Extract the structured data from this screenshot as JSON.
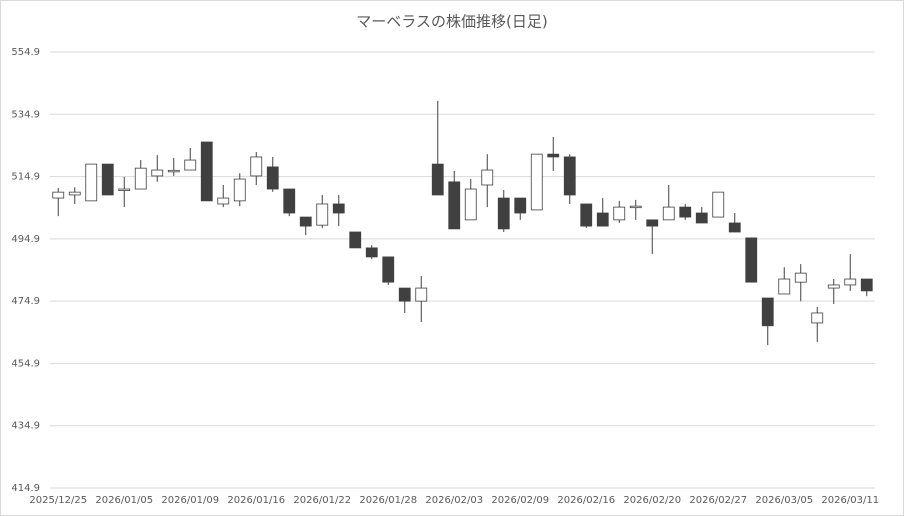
{
  "chart_data": {
    "type": "candlestick",
    "title": "マーベラスの株価推移(日足)",
    "categories": [
      "2025/12/25",
      null,
      null,
      null,
      "2026/01/05",
      null,
      null,
      null,
      "2026/01/09",
      null,
      null,
      null,
      "2026/01/16",
      null,
      null,
      null,
      "2026/01/22",
      null,
      null,
      null,
      "2026/01/28",
      null,
      null,
      null,
      "2026/02/03",
      null,
      null,
      null,
      "2026/02/09",
      null,
      null,
      null,
      "2026/02/16",
      null,
      null,
      null,
      "2026/02/20",
      null,
      null,
      null,
      "2026/02/27",
      null,
      null,
      null,
      "2026/03/05",
      null,
      null,
      null,
      "2026/03/11",
      null
    ],
    "open": [
      508.0,
      509.0,
      507.1,
      518.9,
      510.6,
      510.9,
      515.1,
      516.7,
      517.0,
      526.0,
      506.1,
      507.1,
      515.1,
      518.0,
      510.9,
      501.9,
      499.3,
      506.1,
      497.1,
      492.0,
      489.1,
      479.1,
      474.9,
      518.9,
      513.2,
      501.0,
      512.2,
      508.0,
      508.0,
      504.2,
      522.1,
      521.2,
      506.1,
      503.2,
      501.0,
      505.1,
      501.0,
      501.0,
      505.1,
      503.2,
      501.9,
      500.0,
      495.2,
      475.9,
      477.2,
      481.0,
      467.9,
      479.1,
      480.1,
      482.0
    ],
    "high": [
      511.2,
      511.5,
      518.9,
      518.9,
      514.8,
      520.2,
      521.8,
      520.9,
      524.1,
      526.0,
      512.2,
      516.0,
      522.8,
      521.2,
      510.9,
      501.9,
      509.0,
      509.0,
      497.1,
      492.9,
      489.1,
      479.1,
      483.0,
      539.2,
      516.7,
      514.1,
      522.1,
      510.6,
      508.0,
      522.1,
      527.6,
      522.1,
      506.1,
      508.0,
      507.1,
      507.4,
      501.0,
      512.2,
      506.1,
      505.1,
      509.9,
      503.2,
      495.2,
      475.9,
      485.8,
      486.8,
      473.0,
      482.0,
      490.0,
      482.0
    ],
    "low": [
      502.2,
      506.1,
      507.1,
      509.0,
      505.1,
      510.9,
      513.2,
      515.1,
      517.0,
      507.1,
      505.1,
      505.4,
      512.2,
      510.0,
      502.2,
      496.1,
      498.4,
      499.0,
      492.0,
      488.4,
      480.1,
      471.1,
      468.2,
      509.0,
      498.1,
      501.0,
      505.1,
      497.1,
      501.0,
      504.2,
      516.7,
      506.1,
      498.4,
      499.0,
      500.0,
      501.0,
      490.0,
      501.0,
      501.0,
      500.0,
      501.9,
      497.1,
      481.0,
      460.8,
      477.2,
      474.9,
      461.8,
      474.0,
      478.2,
      476.5
    ],
    "close": [
      509.9,
      509.9,
      518.9,
      509.0,
      510.9,
      517.6,
      517.0,
      516.9,
      520.2,
      507.1,
      508.0,
      514.1,
      521.2,
      510.9,
      503.2,
      499.0,
      506.1,
      503.2,
      492.0,
      489.1,
      481.0,
      474.9,
      479.1,
      509.0,
      498.1,
      510.9,
      517.0,
      498.1,
      503.2,
      522.1,
      521.2,
      509.0,
      499.0,
      499.0,
      505.1,
      505.4,
      499.0,
      505.1,
      501.9,
      500.0,
      509.9,
      497.1,
      481.0,
      467.0,
      482.0,
      483.9,
      471.1,
      480.1,
      482.0,
      478.2
    ],
    "ylim": [
      414.9,
      554.9
    ],
    "yticks": [
      414.9,
      434.9,
      454.9,
      474.9,
      494.9,
      514.9,
      534.9,
      554.9
    ],
    "grid": true,
    "up_color": "#ffffff",
    "down_color": "#404040"
  }
}
